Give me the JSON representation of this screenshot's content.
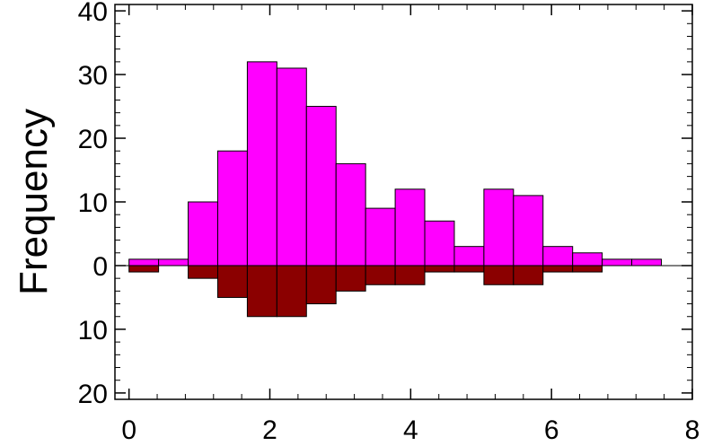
{
  "chart_data": {
    "type": "bar",
    "subtype": "back-to-back histogram",
    "title": "",
    "xlabel": "",
    "ylabel": "Frequency",
    "xlim": [
      -0.2,
      8.0
    ],
    "ylim": [
      -21,
      41
    ],
    "bin_width": 0.42,
    "grid": false,
    "legend": "none",
    "x_ticks": [
      0,
      2,
      4,
      6,
      8
    ],
    "x_tick_labels": [
      "0",
      "2",
      "4",
      "6",
      "8"
    ],
    "y_ticks": [
      40,
      30,
      20,
      10,
      0,
      -10,
      -20
    ],
    "y_tick_labels": [
      "40",
      "30",
      "20",
      "10",
      "0",
      "10",
      "20"
    ],
    "bin_starts": [
      0,
      0.42,
      0.84,
      1.26,
      1.68,
      2.1,
      2.52,
      2.94,
      3.36,
      3.78,
      4.2,
      4.62,
      5.04,
      5.46,
      5.88,
      6.3,
      6.72,
      7.14
    ],
    "series": [
      {
        "direction": "up",
        "color": "#ff00ff",
        "values": [
          1,
          1,
          10,
          18,
          32,
          31,
          25,
          16,
          9,
          12,
          7,
          3,
          12,
          11,
          3,
          2,
          1,
          1
        ]
      },
      {
        "direction": "down",
        "color": "#8b0000",
        "values": [
          1,
          0,
          2,
          5,
          8,
          8,
          6,
          4,
          3,
          3,
          1,
          1,
          3,
          3,
          1,
          1,
          0,
          0
        ]
      }
    ]
  }
}
